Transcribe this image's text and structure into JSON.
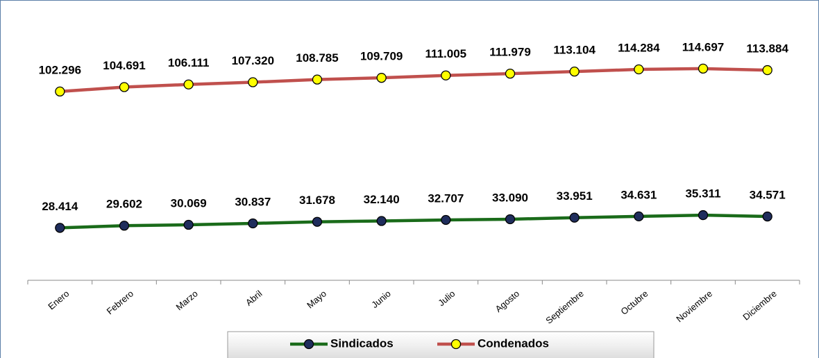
{
  "chart_data": {
    "type": "line",
    "categories": [
      "Enero",
      "Febrero",
      "Marzo",
      "Abril",
      "Mayo",
      "Junio",
      "Julio",
      "Agosto",
      "Septiembre",
      "Octubre",
      "Noviembre",
      "Diciembre"
    ],
    "series": [
      {
        "name": "Sindicados",
        "color": "#1a6b1a",
        "marker_color": "#1f2d5c",
        "values": [
          28414,
          29602,
          30069,
          30837,
          31678,
          32140,
          32707,
          33090,
          33951,
          34631,
          35311,
          34571
        ],
        "value_labels": [
          "28.414",
          "29.602",
          "30.069",
          "30.837",
          "31.678",
          "32.140",
          "32.707",
          "33.090",
          "33.951",
          "34.631",
          "35.311",
          "34.571"
        ]
      },
      {
        "name": "Condenados",
        "color": "#c0504d",
        "marker_color": "#ffff00",
        "values": [
          102296,
          104691,
          106111,
          107320,
          108785,
          109709,
          111005,
          111979,
          113104,
          114284,
          114697,
          113884
        ],
        "value_labels": [
          "102.296",
          "104.691",
          "106.111",
          "107.320",
          "108.785",
          "109.709",
          "111.005",
          "111.979",
          "113.104",
          "114.284",
          "114.697",
          "113.884"
        ]
      }
    ],
    "ylim": [
      0,
      150000
    ],
    "legend": "bottom"
  }
}
